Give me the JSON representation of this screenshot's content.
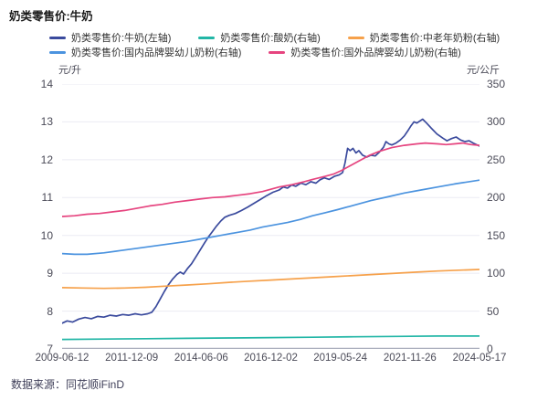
{
  "title": "奶类零售价:牛奶",
  "footer": {
    "source": "数据来源：同花顺iFinD"
  },
  "axes_units": {
    "left": "元/升",
    "right": "元/公斤"
  },
  "legend": {
    "rows": [
      [
        {
          "id": "milk",
          "label": "奶类零售价:牛奶(左轴)",
          "color": "#3A4A9D"
        },
        {
          "id": "yogurt",
          "label": "奶类零售价:酸奶(右轴)",
          "color": "#22B6A6"
        },
        {
          "id": "elderly-powder",
          "label": "奶类零售价:中老年奶粉(右轴)",
          "color": "#F6A14B"
        }
      ],
      [
        {
          "id": "domestic-infant",
          "label": "奶类零售价:国内品牌婴幼儿奶粉(右轴)",
          "color": "#4B93DF"
        },
        {
          "id": "foreign-infant",
          "label": "奶类零售价:国外品牌婴幼儿奶粉(右轴)",
          "color": "#E6447F"
        }
      ]
    ]
  },
  "chart_data": {
    "type": "line",
    "title": "奶类零售价:牛奶",
    "grid": true,
    "legend_position": "top",
    "grid_color": "#EBEBF3",
    "axis_line_color": "#AAAEBC",
    "x_labels": [
      "2009-06-12",
      "2011-12-09",
      "2014-06-06",
      "2016-12-02",
      "2019-05-24",
      "2021-11-26",
      "2024-05-17"
    ],
    "left_axis": {
      "unit": "元/升",
      "range": [
        7,
        14
      ],
      "ticks": [
        14,
        13,
        12,
        11,
        10,
        9,
        8,
        7
      ]
    },
    "right_axis": {
      "unit": "元/公斤",
      "range": [
        0,
        350
      ],
      "ticks": [
        350,
        300,
        250,
        200,
        150,
        100,
        50,
        0
      ]
    },
    "series": [
      {
        "id": "milk",
        "name": "奶类零售价:牛奶(左轴)",
        "color": "#3A4A9D",
        "axis": "left",
        "points": [
          [
            0,
            7.68
          ],
          [
            0.012,
            7.74
          ],
          [
            0.025,
            7.71
          ],
          [
            0.04,
            7.79
          ],
          [
            0.055,
            7.83
          ],
          [
            0.07,
            7.8
          ],
          [
            0.085,
            7.86
          ],
          [
            0.1,
            7.84
          ],
          [
            0.115,
            7.89
          ],
          [
            0.13,
            7.87
          ],
          [
            0.145,
            7.91
          ],
          [
            0.16,
            7.89
          ],
          [
            0.175,
            7.93
          ],
          [
            0.19,
            7.9
          ],
          [
            0.205,
            7.93
          ],
          [
            0.215,
            7.97
          ],
          [
            0.225,
            8.12
          ],
          [
            0.235,
            8.32
          ],
          [
            0.245,
            8.52
          ],
          [
            0.255,
            8.7
          ],
          [
            0.265,
            8.85
          ],
          [
            0.275,
            8.97
          ],
          [
            0.283,
            9.03
          ],
          [
            0.291,
            8.98
          ],
          [
            0.3,
            9.12
          ],
          [
            0.31,
            9.25
          ],
          [
            0.32,
            9.42
          ],
          [
            0.33,
            9.6
          ],
          [
            0.34,
            9.78
          ],
          [
            0.35,
            9.95
          ],
          [
            0.36,
            10.1
          ],
          [
            0.37,
            10.25
          ],
          [
            0.38,
            10.38
          ],
          [
            0.39,
            10.48
          ],
          [
            0.4,
            10.53
          ],
          [
            0.415,
            10.58
          ],
          [
            0.43,
            10.66
          ],
          [
            0.445,
            10.75
          ],
          [
            0.46,
            10.85
          ],
          [
            0.475,
            10.95
          ],
          [
            0.49,
            11.05
          ],
          [
            0.505,
            11.14
          ],
          [
            0.52,
            11.2
          ],
          [
            0.53,
            11.28
          ],
          [
            0.54,
            11.25
          ],
          [
            0.55,
            11.33
          ],
          [
            0.56,
            11.3
          ],
          [
            0.572,
            11.38
          ],
          [
            0.584,
            11.34
          ],
          [
            0.596,
            11.42
          ],
          [
            0.608,
            11.38
          ],
          [
            0.618,
            11.47
          ],
          [
            0.628,
            11.52
          ],
          [
            0.64,
            11.48
          ],
          [
            0.652,
            11.56
          ],
          [
            0.664,
            11.6
          ],
          [
            0.672,
            11.66
          ],
          [
            0.678,
            11.92
          ],
          [
            0.684,
            12.3
          ],
          [
            0.69,
            12.24
          ],
          [
            0.697,
            12.3
          ],
          [
            0.704,
            12.18
          ],
          [
            0.711,
            12.24
          ],
          [
            0.72,
            12.12
          ],
          [
            0.73,
            12.07
          ],
          [
            0.74,
            12.12
          ],
          [
            0.75,
            12.1
          ],
          [
            0.76,
            12.2
          ],
          [
            0.77,
            12.33
          ],
          [
            0.776,
            12.48
          ],
          [
            0.783,
            12.42
          ],
          [
            0.79,
            12.39
          ],
          [
            0.8,
            12.44
          ],
          [
            0.81,
            12.52
          ],
          [
            0.82,
            12.63
          ],
          [
            0.828,
            12.76
          ],
          [
            0.836,
            12.9
          ],
          [
            0.843,
            13.0
          ],
          [
            0.85,
            12.97
          ],
          [
            0.857,
            13.02
          ],
          [
            0.864,
            13.07
          ],
          [
            0.873,
            12.97
          ],
          [
            0.884,
            12.84
          ],
          [
            0.898,
            12.68
          ],
          [
            0.912,
            12.57
          ],
          [
            0.922,
            12.5
          ],
          [
            0.933,
            12.56
          ],
          [
            0.944,
            12.6
          ],
          [
            0.955,
            12.52
          ],
          [
            0.965,
            12.48
          ],
          [
            0.975,
            12.5
          ],
          [
            0.985,
            12.44
          ],
          [
            1,
            12.36
          ]
        ]
      },
      {
        "id": "yogurt",
        "name": "奶类零售价:酸奶(右轴)",
        "color": "#22B6A6",
        "axis": "right",
        "points": [
          [
            0,
            12.5
          ],
          [
            0.1,
            13
          ],
          [
            0.2,
            13.5
          ],
          [
            0.3,
            14
          ],
          [
            0.4,
            14.5
          ],
          [
            0.5,
            15
          ],
          [
            0.6,
            15.5
          ],
          [
            0.7,
            16
          ],
          [
            0.8,
            16.5
          ],
          [
            0.9,
            17
          ],
          [
            1,
            17
          ]
        ]
      },
      {
        "id": "elderly-powder",
        "name": "奶类零售价:中老年奶粉(右轴)",
        "color": "#F6A14B",
        "axis": "right",
        "points": [
          [
            0,
            81
          ],
          [
            0.05,
            80.5
          ],
          [
            0.1,
            80
          ],
          [
            0.15,
            80.5
          ],
          [
            0.2,
            81.5
          ],
          [
            0.25,
            83
          ],
          [
            0.3,
            84.5
          ],
          [
            0.35,
            86
          ],
          [
            0.4,
            88
          ],
          [
            0.45,
            89.5
          ],
          [
            0.5,
            91
          ],
          [
            0.55,
            92.5
          ],
          [
            0.6,
            94
          ],
          [
            0.65,
            95.5
          ],
          [
            0.7,
            97
          ],
          [
            0.75,
            98.5
          ],
          [
            0.8,
            100
          ],
          [
            0.85,
            101.5
          ],
          [
            0.9,
            103
          ],
          [
            0.95,
            104
          ],
          [
            1,
            105
          ]
        ]
      },
      {
        "id": "domestic-infant",
        "name": "奶类零售价:国内品牌婴幼儿奶粉(右轴)",
        "color": "#4B93DF",
        "axis": "right",
        "points": [
          [
            0,
            126
          ],
          [
            0.03,
            125
          ],
          [
            0.06,
            125
          ],
          [
            0.1,
            127
          ],
          [
            0.14,
            130
          ],
          [
            0.18,
            133
          ],
          [
            0.22,
            136
          ],
          [
            0.26,
            139
          ],
          [
            0.3,
            142
          ],
          [
            0.34,
            146
          ],
          [
            0.38,
            150
          ],
          [
            0.42,
            154
          ],
          [
            0.45,
            157
          ],
          [
            0.48,
            161
          ],
          [
            0.51,
            164
          ],
          [
            0.54,
            167
          ],
          [
            0.57,
            171
          ],
          [
            0.6,
            176
          ],
          [
            0.63,
            180
          ],
          [
            0.66,
            184
          ],
          [
            0.7,
            190
          ],
          [
            0.74,
            196
          ],
          [
            0.78,
            201
          ],
          [
            0.82,
            206
          ],
          [
            0.86,
            210
          ],
          [
            0.9,
            214
          ],
          [
            0.94,
            218
          ],
          [
            1,
            223
          ]
        ]
      },
      {
        "id": "foreign-infant",
        "name": "奶类零售价:国外品牌婴幼儿奶粉(右轴)",
        "color": "#E6447F",
        "axis": "right",
        "points": [
          [
            0,
            175
          ],
          [
            0.03,
            176
          ],
          [
            0.06,
            178
          ],
          [
            0.09,
            179
          ],
          [
            0.12,
            181
          ],
          [
            0.15,
            183
          ],
          [
            0.18,
            186
          ],
          [
            0.21,
            189
          ],
          [
            0.24,
            191
          ],
          [
            0.27,
            194
          ],
          [
            0.3,
            196
          ],
          [
            0.33,
            198
          ],
          [
            0.36,
            200
          ],
          [
            0.39,
            201
          ],
          [
            0.42,
            203
          ],
          [
            0.45,
            205
          ],
          [
            0.48,
            208
          ],
          [
            0.5,
            211
          ],
          [
            0.52,
            214
          ],
          [
            0.55,
            217
          ],
          [
            0.58,
            221
          ],
          [
            0.6,
            224
          ],
          [
            0.63,
            228
          ],
          [
            0.65,
            231
          ],
          [
            0.67,
            236
          ],
          [
            0.69,
            242
          ],
          [
            0.71,
            248
          ],
          [
            0.737,
            256
          ],
          [
            0.76,
            261
          ],
          [
            0.79,
            266
          ],
          [
            0.82,
            269
          ],
          [
            0.85,
            271
          ],
          [
            0.87,
            272
          ],
          [
            0.9,
            271
          ],
          [
            0.92,
            270
          ],
          [
            0.94,
            271
          ],
          [
            0.96,
            272
          ],
          [
            0.98,
            270
          ],
          [
            1,
            269
          ]
        ]
      }
    ]
  }
}
